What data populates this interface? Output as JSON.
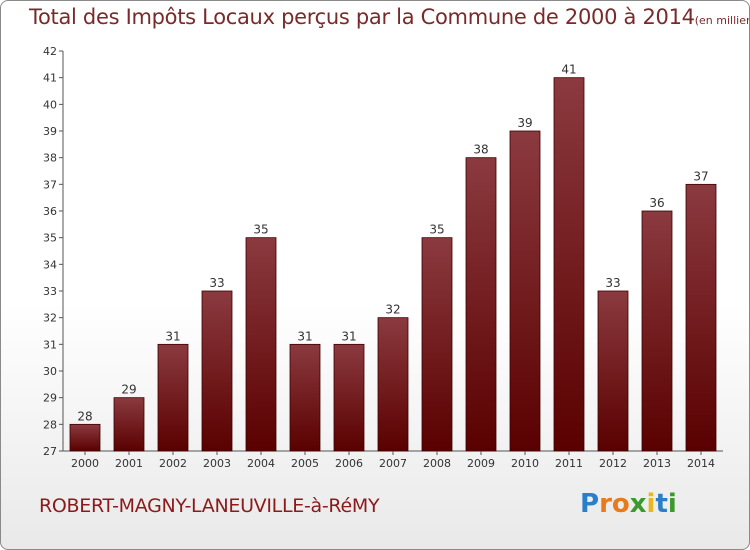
{
  "chart_data": {
    "type": "bar",
    "title": "Total des Impôts Locaux perçus par la Commune de 2000 à 2014",
    "unit": "(en milliers d'€)",
    "categories": [
      "2000",
      "2001",
      "2002",
      "2003",
      "2004",
      "2005",
      "2006",
      "2007",
      "2008",
      "2009",
      "2010",
      "2011",
      "2012",
      "2013",
      "2014"
    ],
    "values": [
      28,
      29,
      31,
      33,
      35,
      31,
      31,
      32,
      35,
      38,
      39,
      41,
      33,
      36,
      37
    ],
    "ylim": [
      27,
      42
    ],
    "yticks": [
      27,
      28,
      29,
      30,
      31,
      32,
      33,
      34,
      35,
      36,
      37,
      38,
      39,
      40,
      41,
      42
    ],
    "grid": false,
    "bar_color_top": "#8b3a3f",
    "bar_color_bottom": "#5a0000"
  },
  "footer": {
    "commune": "ROBERT-MAGNY-LANEUVILLE-à-RéMY",
    "logo_letters": [
      {
        "ch": "P",
        "color": "#2b7fc8"
      },
      {
        "ch": "r",
        "color": "#e87a1c"
      },
      {
        "ch": "o",
        "color": "#e87a1c"
      },
      {
        "ch": "x",
        "color": "#3a9a2a"
      },
      {
        "ch": "i",
        "color": "#e8b81c"
      },
      {
        "ch": "t",
        "color": "#2b7fc8"
      },
      {
        "ch": "i",
        "color": "#3a9a2a"
      }
    ]
  }
}
